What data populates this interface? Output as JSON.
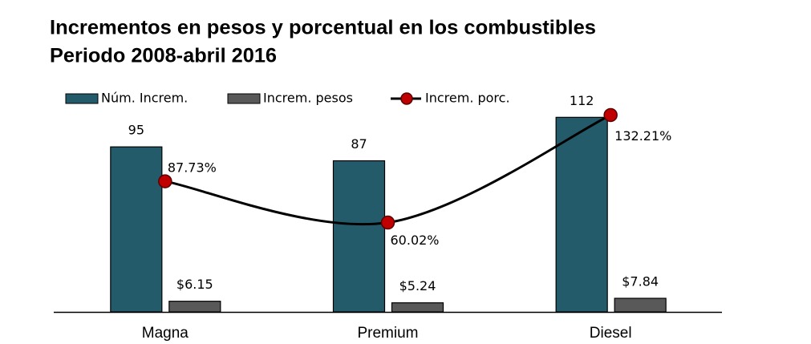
{
  "chart_data": {
    "type": "bar",
    "title": "Incrementos en pesos y porcentual en los combustibles",
    "subtitle": "Periodo 2008-abril 2016",
    "categories": [
      "Magna",
      "Premium",
      "Diesel"
    ],
    "series": [
      {
        "name": "Núm. Increm.",
        "color": "#245b6b",
        "values": [
          95,
          87,
          112
        ]
      },
      {
        "name": "Increm. pesos",
        "color": "#595959",
        "values": [
          6.15,
          5.24,
          7.84
        ],
        "value_labels": [
          "$6.15",
          "$5.24",
          "$7.84"
        ]
      },
      {
        "name": "Increm. porc.",
        "type": "line",
        "axis": "y2",
        "color": "#000000",
        "marker_color": "#c00000",
        "values": [
          87.73,
          60.02,
          132.21
        ],
        "value_labels": [
          "87.73%",
          "60.02%",
          "132.21%"
        ]
      }
    ],
    "ylim": [
      0,
      120
    ],
    "y2lim": [
      0,
      140
    ],
    "legend": "top"
  }
}
